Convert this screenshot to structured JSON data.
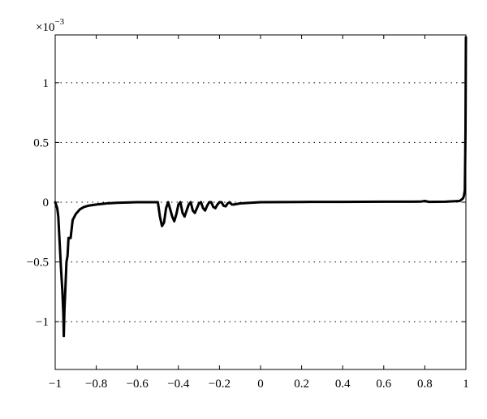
{
  "chart_data": {
    "type": "line",
    "title": "",
    "xlabel": "",
    "ylabel": "",
    "xlim": [
      -1,
      1
    ],
    "ylim": [
      -1.4,
      1.4
    ],
    "y_scale_label": "×10",
    "y_scale_exponent": "−3",
    "grid": "horizontal dotted",
    "x_ticks": [
      -1,
      -0.8,
      -0.6,
      -0.4,
      -0.2,
      0,
      0.2,
      0.4,
      0.6,
      0.8,
      1
    ],
    "x_tick_labels": [
      "−1",
      "−0.8",
      "−0.6",
      "−0.4",
      "−0.2",
      "0",
      "0.2",
      "0.4",
      "0.6",
      "0.8",
      "1"
    ],
    "y_ticks": [
      -1,
      -0.5,
      0,
      0.5,
      1
    ],
    "y_tick_labels": [
      "−1",
      "−0.5",
      "0",
      "0.5",
      "1"
    ],
    "series": [
      {
        "color": "#000000",
        "x": [
          -1.0,
          -0.99,
          -0.985,
          -0.978,
          -0.972,
          -0.965,
          -0.96,
          -0.958,
          -0.955,
          -0.95,
          -0.945,
          -0.94,
          -0.935,
          -0.925,
          -0.915,
          -0.9,
          -0.88,
          -0.86,
          -0.84,
          -0.8,
          -0.75,
          -0.7,
          -0.6,
          -0.5,
          -0.49,
          -0.48,
          -0.47,
          -0.46,
          -0.45,
          -0.43,
          -0.42,
          -0.41,
          -0.4,
          -0.39,
          -0.38,
          -0.37,
          -0.36,
          -0.35,
          -0.34,
          -0.33,
          -0.32,
          -0.31,
          -0.3,
          -0.29,
          -0.28,
          -0.27,
          -0.26,
          -0.25,
          -0.24,
          -0.23,
          -0.22,
          -0.21,
          -0.2,
          -0.19,
          -0.18,
          -0.17,
          -0.16,
          -0.15,
          -0.14,
          -0.13,
          -0.1,
          -0.05,
          0.0,
          0.2,
          0.4,
          0.6,
          0.78,
          0.8,
          0.82,
          0.9,
          0.97,
          0.985,
          0.99,
          0.995,
          0.998,
          1.0
        ],
        "y": [
          0,
          -0.05,
          -0.12,
          -0.35,
          -0.55,
          -0.75,
          -0.95,
          -1.12,
          -0.9,
          -0.7,
          -0.5,
          -0.45,
          -0.3,
          -0.3,
          -0.15,
          -0.1,
          -0.06,
          -0.04,
          -0.03,
          -0.02,
          -0.01,
          -0.005,
          0,
          0,
          -0.12,
          -0.2,
          -0.17,
          -0.05,
          0.0,
          -0.12,
          -0.16,
          -0.1,
          -0.02,
          0.0,
          -0.09,
          -0.12,
          -0.07,
          -0.02,
          0.0,
          -0.07,
          -0.09,
          -0.05,
          -0.01,
          0.0,
          -0.05,
          -0.07,
          -0.03,
          0.0,
          0.0,
          -0.04,
          -0.05,
          -0.02,
          0.0,
          0.0,
          -0.03,
          -0.035,
          -0.01,
          0.0,
          -0.02,
          -0.02,
          -0.01,
          -0.005,
          0.0,
          0.002,
          0.003,
          0.004,
          0.005,
          0.01,
          0.003,
          0.004,
          0.01,
          0.03,
          0.05,
          0.1,
          0.6,
          1.38
        ]
      }
    ]
  }
}
